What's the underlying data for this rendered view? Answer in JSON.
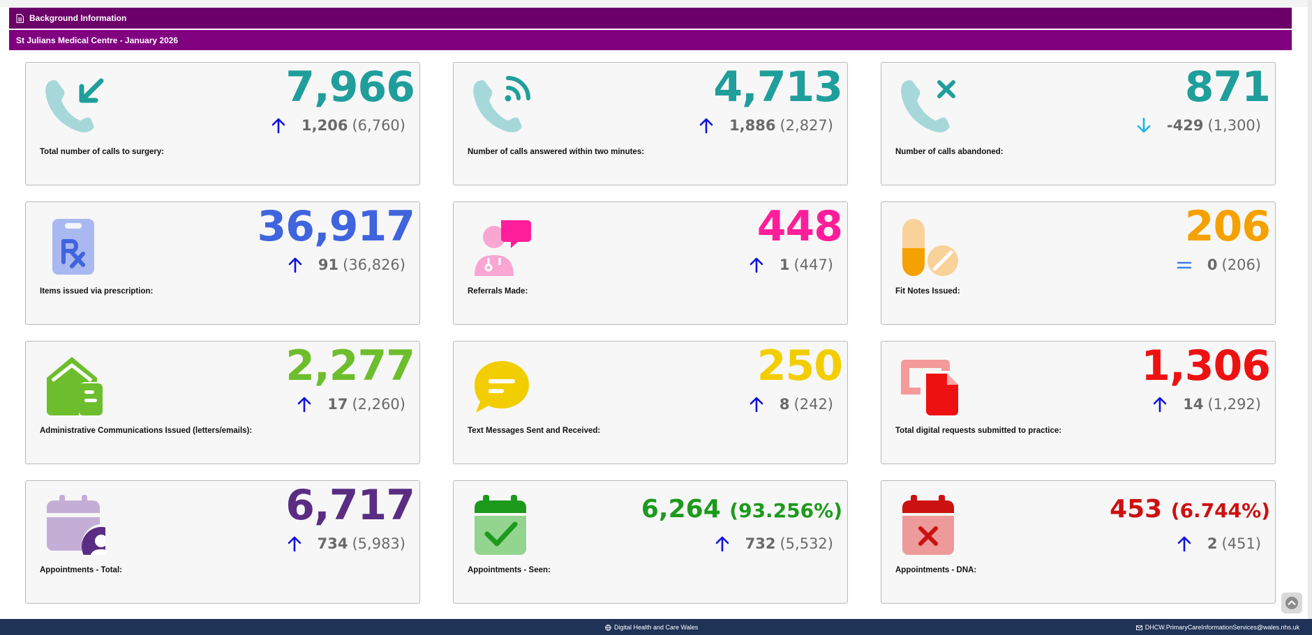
{
  "header": {
    "section_title": "Background Information",
    "practice_title": "St Julians Medical Centre - January 2026"
  },
  "colors": {
    "teal": "#1f9e9b",
    "blue": "#3f64dd",
    "magenta": "#ff1e9a",
    "orange": "#f5a100",
    "green": "#6dbe2c",
    "yellow": "#f2ce00",
    "red": "#ee1111",
    "purple": "#5a2d82",
    "seen_green": "#1c9a1c",
    "dna_red": "#cc1111",
    "arrow_blue": "#1010e0",
    "arrow_cyan": "#17b6e8"
  },
  "cards": [
    {
      "value": "7,966",
      "percent": "",
      "change": "1,206",
      "previous": "(6,760)",
      "direction": "up",
      "label": "Total number of calls to surgery:",
      "icon": "phone-incoming-icon"
    },
    {
      "value": "4,713",
      "percent": "",
      "change": "1,886",
      "previous": "(2,827)",
      "direction": "up",
      "label": "Number of calls answered within two minutes:",
      "icon": "phone-answered-icon"
    },
    {
      "value": "871",
      "percent": "",
      "change": "-429",
      "previous": "(1,300)",
      "direction": "down",
      "label": "Number of calls abandoned:",
      "icon": "phone-abandoned-icon"
    },
    {
      "value": "36,917",
      "percent": "",
      "change": "91",
      "previous": "(36,826)",
      "direction": "up",
      "label": "Items issued via prescription:",
      "icon": "prescription-icon"
    },
    {
      "value": "448",
      "percent": "",
      "change": "1",
      "previous": "(447)",
      "direction": "up",
      "label": "Referrals Made:",
      "icon": "doctor-referral-icon"
    },
    {
      "value": "206",
      "percent": "",
      "change": "0",
      "previous": "(206)",
      "direction": "equal",
      "label": "Fit Notes Issued:",
      "icon": "pills-icon"
    },
    {
      "value": "2,277",
      "percent": "",
      "change": "17",
      "previous": "(2,260)",
      "direction": "up",
      "label": "Administrative Communications Issued (letters/emails):",
      "icon": "mail-house-icon"
    },
    {
      "value": "250",
      "percent": "",
      "change": "8",
      "previous": "(242)",
      "direction": "up",
      "label": "Text Messages Sent and Received:",
      "icon": "chat-message-icon"
    },
    {
      "value": "1,306",
      "percent": "",
      "change": "14",
      "previous": "(1,292)",
      "direction": "up",
      "label": "Total digital requests submitted to practice:",
      "icon": "digital-request-icon"
    },
    {
      "value": "6,717",
      "percent": "",
      "change": "734",
      "previous": "(5,983)",
      "direction": "up",
      "label": "Appointments - Total:",
      "icon": "calendar-user-icon"
    },
    {
      "value": "6,264",
      "percent": "(93.256%)",
      "change": "732",
      "previous": "(5,532)",
      "direction": "up",
      "label": "Appointments - Seen:",
      "icon": "calendar-check-icon"
    },
    {
      "value": "453",
      "percent": "(6.744%)",
      "change": "2",
      "previous": "(451)",
      "direction": "up",
      "label": "Appointments - DNA:",
      "icon": "calendar-cross-icon"
    }
  ],
  "footer": {
    "org": "Digital Health and Care Wales",
    "email": "DHCW.PrimaryCareInformationServices@wales.nhs.uk"
  }
}
